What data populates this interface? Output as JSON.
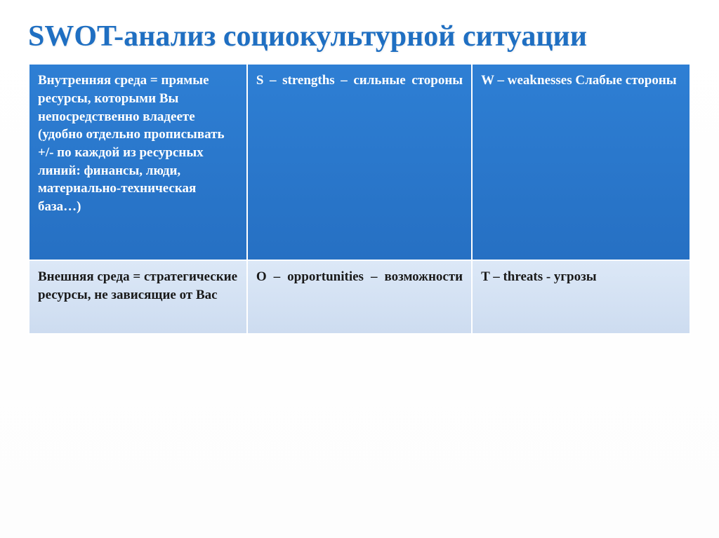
{
  "title": "SWOT-анализ социокультурной ситуации",
  "table": {
    "header_row": {
      "col1": "Внутренняя среда = прямые ресурсы, которыми Вы непосредственно владеете (удобно отдельно прописывать +/- по каждой из ресурсных линий: финансы, люди, материально-техническая база…)",
      "col2": "S – strengths – сильные стороны",
      "col3": "W – weaknesses Слабые стороны"
    },
    "body_row": {
      "col1": "Внешняя среда = стратегические ресурсы, не зависящие от Вас",
      "col2": "O – opportunities – возможности",
      "col3": "T – threats - угрозы"
    }
  },
  "colors": {
    "title_color": "#1f6fc2",
    "header_bg": "#2a78cc",
    "header_text": "#ffffff",
    "body_bg": "#d4e2f4",
    "body_text": "#1a1a1a",
    "border": "#ffffff"
  },
  "fontsize": {
    "title": 42,
    "cell": 19
  }
}
